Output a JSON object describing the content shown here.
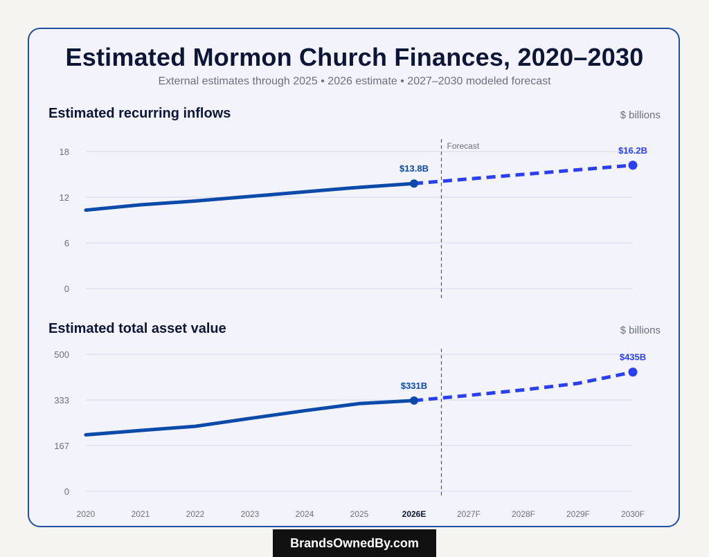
{
  "title": "Estimated Mormon Church Finances, 2020–2030",
  "subtitle": "External estimates through 2025 • 2026 estimate • 2027–2030 modeled forecast",
  "footer": "BrandsOwnedBy.com",
  "forecast_label": "Forecast",
  "colors": {
    "actual": "#0b4aa8",
    "forecast": "#2a3ff0",
    "grid": "#d6d8ec",
    "axis_text": "#6b6f7c",
    "divider": "#555555"
  },
  "chart_data": [
    {
      "type": "line",
      "title": "Estimated recurring inflows",
      "unit": "$ billions",
      "x": [
        "2020",
        "2021",
        "2022",
        "2023",
        "2024",
        "2025",
        "2026E",
        "2027F",
        "2028F",
        "2029F",
        "2030F"
      ],
      "yticks": [
        0,
        6,
        12,
        18
      ],
      "ylim": [
        0,
        18
      ],
      "actual": [
        10.3,
        11.0,
        11.5,
        12.1,
        12.7,
        13.3,
        13.8
      ],
      "forecast_start_index": 6,
      "forecast": [
        13.8,
        14.4,
        15.0,
        15.6,
        16.2
      ],
      "labels": [
        {
          "index": 6,
          "text": "$13.8B"
        },
        {
          "index": 10,
          "text": "$16.2B"
        }
      ]
    },
    {
      "type": "line",
      "title": "Estimated total asset value",
      "unit": "$ billions",
      "x": [
        "2020",
        "2021",
        "2022",
        "2023",
        "2024",
        "2025",
        "2026E",
        "2027F",
        "2028F",
        "2029F",
        "2030F"
      ],
      "yticks": [
        0,
        167,
        333,
        500
      ],
      "ylim": [
        0,
        500
      ],
      "actual": [
        206,
        222,
        237,
        266,
        294,
        320,
        331
      ],
      "forecast_start_index": 6,
      "forecast": [
        331,
        350,
        370,
        394,
        435
      ],
      "labels": [
        {
          "index": 6,
          "text": "$331B"
        },
        {
          "index": 10,
          "text": "$435B"
        }
      ]
    }
  ]
}
